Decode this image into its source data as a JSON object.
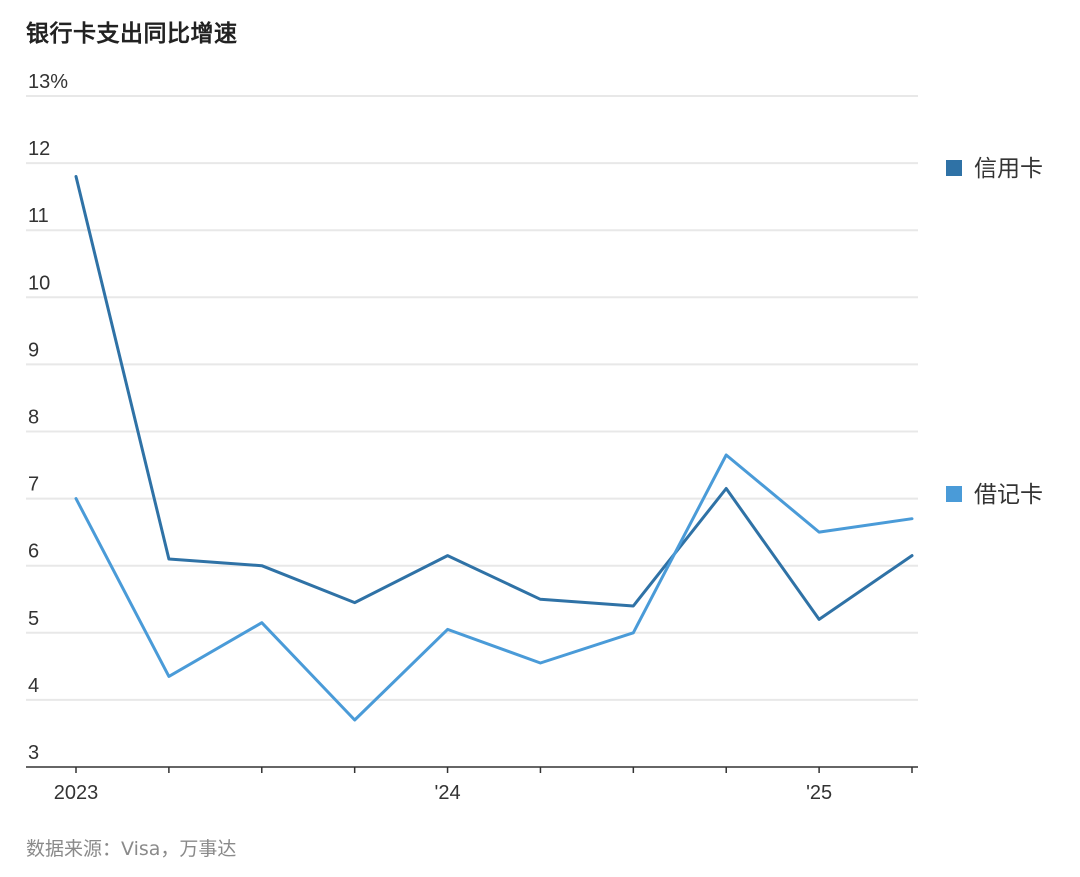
{
  "title": "银行卡支出同比增速",
  "source": "数据来源：Visa，万事达",
  "colors": {
    "credit": "#2f72a6",
    "debit": "#4a9bd8",
    "grid": "#e8e8e8",
    "axis": "#333333"
  },
  "chart_data": {
    "type": "line",
    "title": "银行卡支出同比增速",
    "ylabel": "",
    "ylim": [
      3,
      13
    ],
    "y_ticks": [
      3,
      4,
      5,
      6,
      7,
      8,
      9,
      10,
      11,
      12,
      13
    ],
    "y_tick_labels": [
      "3",
      "4",
      "5",
      "6",
      "7",
      "8",
      "9",
      "10",
      "11",
      "12",
      "13%"
    ],
    "x": [
      "2023 Q1",
      "2023 Q2",
      "2023 Q3",
      "2023 Q4",
      "2024 Q1",
      "2024 Q2",
      "2024 Q3",
      "2024 Q4",
      "2025 Q1",
      "2025 Q2"
    ],
    "x_tick_labels": [
      "2023",
      "",
      "",
      "",
      "'24",
      "",
      "",
      "",
      "'25",
      ""
    ],
    "grid": true,
    "legend_position": "right",
    "series": [
      {
        "name": "信用卡",
        "color": "#2f72a6",
        "values": [
          11.8,
          6.1,
          6.0,
          5.45,
          6.15,
          5.5,
          5.4,
          7.15,
          5.2,
          6.15
        ]
      },
      {
        "name": "借记卡",
        "color": "#4a9bd8",
        "values": [
          7.0,
          4.35,
          5.15,
          3.7,
          5.05,
          4.55,
          5.0,
          7.65,
          6.5,
          6.7
        ]
      }
    ]
  }
}
